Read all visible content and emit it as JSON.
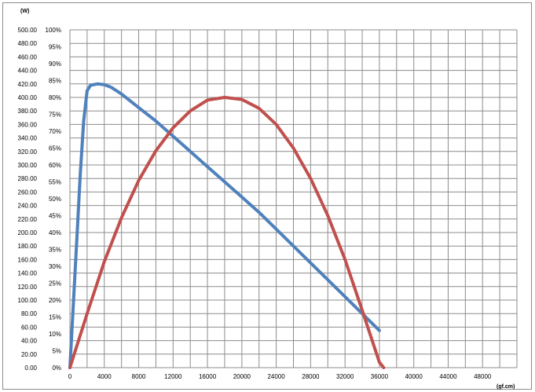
{
  "chart_data": {
    "type": "line",
    "title": "",
    "left_axis_unit": "(W)",
    "x_axis_unit": "(gf.cm)",
    "xlim": [
      0,
      52000
    ],
    "x_ticks": [
      "0",
      "4000",
      "8000",
      "12000",
      "16000",
      "20000",
      "24000",
      "28000",
      "32000",
      "36000",
      "40000",
      "44000",
      "48000"
    ],
    "x_tick_values": [
      0,
      4000,
      8000,
      12000,
      16000,
      20000,
      24000,
      28000,
      32000,
      36000,
      40000,
      44000,
      48000
    ],
    "left_ylim": [
      0,
      500
    ],
    "left_ticks": [
      "0.00",
      "20.00",
      "40.00",
      "60.00",
      "80.00",
      "100.00",
      "120.00",
      "140.00",
      "160.00",
      "180.00",
      "200.00",
      "220.00",
      "240.00",
      "260.00",
      "280.00",
      "300.00",
      "320.00",
      "340.00",
      "360.00",
      "380.00",
      "400.00",
      "420.00",
      "440.00",
      "460.00",
      "480.00",
      "500.00"
    ],
    "right_ylim": [
      0,
      100
    ],
    "right_ticks": [
      "0%",
      "5%",
      "10%",
      "15%",
      "20%",
      "25%",
      "30%",
      "35%",
      "40%",
      "45%",
      "50%",
      "55%",
      "60%",
      "65%",
      "70%",
      "75%",
      "80%",
      "85%",
      "90%",
      "95%",
      "100%"
    ],
    "grid": true,
    "series": [
      {
        "color": "#4f81bd",
        "axis": "right",
        "x": [
          0,
          400,
          800,
          1200,
          1600,
          2000,
          2400,
          3200,
          4000,
          4800,
          6000,
          8000,
          10000,
          12000,
          14000,
          16000,
          18000,
          20000,
          22000,
          24000,
          26000,
          28000,
          30000,
          32000,
          34000,
          36000
        ],
        "y": [
          0,
          19,
          38,
          57,
          73,
          82,
          83.6,
          84,
          83.8,
          83,
          81,
          77,
          73,
          68.5,
          64,
          59.5,
          55,
          50.5,
          46,
          41,
          36,
          31,
          26,
          21,
          16,
          11
        ]
      },
      {
        "color": "#c0504d",
        "axis": "left",
        "x": [
          0,
          2000,
          4000,
          6000,
          8000,
          10000,
          12000,
          14000,
          16000,
          18000,
          20000,
          22000,
          24000,
          26000,
          28000,
          30000,
          32000,
          34000,
          36000,
          36500
        ],
        "y": [
          0,
          80,
          157,
          222,
          277,
          321,
          355,
          380,
          396,
          400,
          397,
          384,
          360,
          325,
          280,
          225,
          160,
          85,
          8,
          0
        ]
      }
    ]
  }
}
